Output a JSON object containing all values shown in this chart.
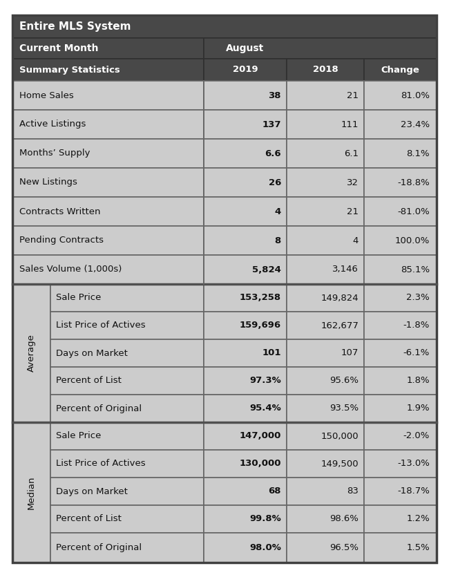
{
  "title_line1": "Entire MLS System",
  "title_line2": "Current Month",
  "title_month": "August",
  "header_dark_bg": "#484848",
  "header_text_color": "#ffffff",
  "cell_bg": "#cccccc",
  "text_color": "#111111",
  "border_color": "#666666",
  "col_headers": [
    "Summary Statistics",
    "2019",
    "2018",
    "Change"
  ],
  "summary_rows": [
    [
      "Home Sales",
      "38",
      "21",
      "81.0%"
    ],
    [
      "Active Listings",
      "137",
      "111",
      "23.4%"
    ],
    [
      "Months’ Supply",
      "6.6",
      "6.1",
      "8.1%"
    ],
    [
      "New Listings",
      "26",
      "32",
      "-18.8%"
    ],
    [
      "Contracts Written",
      "4",
      "21",
      "-81.0%"
    ],
    [
      "Pending Contracts",
      "8",
      "4",
      "100.0%"
    ],
    [
      "Sales Volume (1,000s)",
      "5,824",
      "3,146",
      "85.1%"
    ]
  ],
  "average_rows": [
    [
      "Sale Price",
      "153,258",
      "149,824",
      "2.3%"
    ],
    [
      "List Price of Actives",
      "159,696",
      "162,677",
      "-1.8%"
    ],
    [
      "Days on Market",
      "101",
      "107",
      "-6.1%"
    ],
    [
      "Percent of List",
      "97.3%",
      "95.6%",
      "1.8%"
    ],
    [
      "Percent of Original",
      "95.4%",
      "93.5%",
      "1.9%"
    ]
  ],
  "median_rows": [
    [
      "Sale Price",
      "147,000",
      "150,000",
      "-2.0%"
    ],
    [
      "List Price of Actives",
      "130,000",
      "149,500",
      "-13.0%"
    ],
    [
      "Days on Market",
      "68",
      "83",
      "-18.7%"
    ],
    [
      "Percent of List",
      "99.8%",
      "98.6%",
      "1.2%"
    ],
    [
      "Percent of Original",
      "98.0%",
      "96.5%",
      "1.5%"
    ]
  ]
}
